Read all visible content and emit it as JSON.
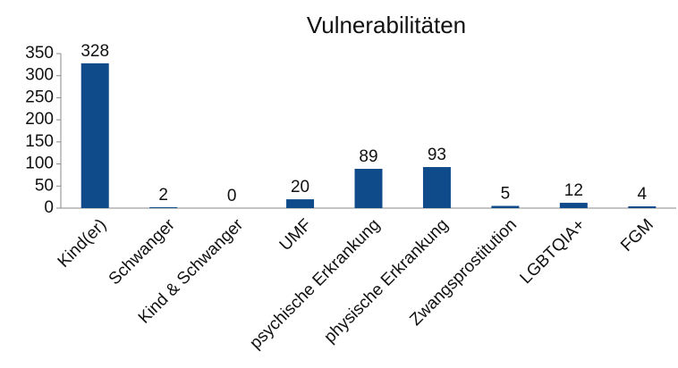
{
  "chart_data": {
    "type": "bar",
    "title": "Vulnerabilitäten",
    "categories": [
      "Kind(er)",
      "Schwanger",
      "Kind & Schwanger",
      "UMF",
      "psychische Erkrankung",
      "physische Erkrankung",
      "Zwangsprostitution",
      "LGBTQIA+",
      "FGM"
    ],
    "values": [
      328,
      2,
      0,
      20,
      89,
      93,
      5,
      12,
      4
    ],
    "color": "#0f4a8a",
    "ylim": [
      0,
      350
    ],
    "yticks": [
      0,
      50,
      100,
      150,
      200,
      250,
      300,
      350
    ],
    "grid": false
  }
}
